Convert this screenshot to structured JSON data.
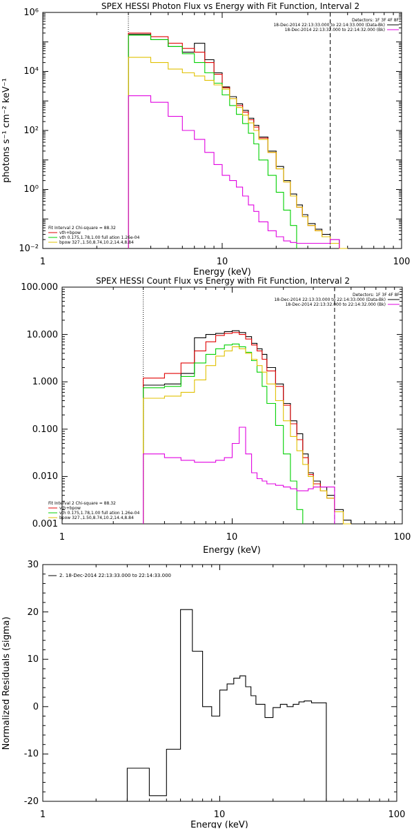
{
  "colors": {
    "data": "#000000",
    "total_fit": "#e00000",
    "vth": "#00d000",
    "bpow": "#e0c000",
    "background": "#e000e0"
  },
  "chart_data": [
    {
      "type": "line",
      "title": "SPEX HESSI Photon Flux vs Energy with Fit Function, Interval 2",
      "xlabel": "Energy (keV)",
      "ylabel": "photons s⁻¹ cm⁻² keV⁻¹",
      "xscale": "log",
      "yscale": "log",
      "xlim": [
        1,
        100
      ],
      "ylim": [
        0.01,
        1000000
      ],
      "xticks": [
        "1",
        "10",
        "100"
      ],
      "yticks": [
        "10⁻²",
        "10⁰",
        "10²",
        "10⁴",
        "10⁶"
      ],
      "vlines": [
        {
          "x": 3,
          "style": "dotted"
        },
        {
          "x": 40,
          "style": "dashed"
        }
      ],
      "header": {
        "detectors": "Detectors: 1F 3F 4F 8F",
        "line1": "18-Dec-2014 22:13:33.000 to 22:14:33.000 (Data-Bk)",
        "line2": "18-Dec-2014 22:13:32.000 to 22:14:32.000 (Bk)"
      },
      "fit_legend": {
        "title": "Fit Interval 2   Chi-square = 88.32",
        "items": [
          "vth+bpow",
          "vth 0.175,1.78,1.00  full ation 1.26e-04",
          "bpow 327.,1.50,8.74,10.2,14.4,8.84"
        ]
      },
      "edges": [
        3,
        4,
        5,
        6,
        7,
        8,
        9,
        10,
        11,
        12,
        13,
        14,
        15,
        16,
        18,
        20,
        22,
        24,
        26,
        28,
        30,
        33,
        36,
        40,
        45,
        50
      ],
      "series": [
        {
          "role": "data",
          "values": [
            180000,
            120000,
            70000,
            45000,
            90000,
            25000,
            9000,
            3000,
            1400,
            800,
            480,
            260,
            150,
            60,
            20,
            6,
            2,
            0.7,
            0.3,
            0.14,
            0.07,
            0.045,
            0.03,
            0.02,
            null
          ]
        },
        {
          "role": "total_fit",
          "values": [
            200000,
            150000,
            90000,
            60000,
            45000,
            20000,
            8000,
            2800,
            1200,
            700,
            420,
            230,
            130,
            55,
            18,
            5,
            1.8,
            0.6,
            0.25,
            0.12,
            0.06,
            0.04,
            0.025,
            0.015,
            0.01
          ]
        },
        {
          "role": "vth",
          "values": [
            170000,
            120000,
            70000,
            40000,
            20000,
            9000,
            4000,
            1600,
            700,
            350,
            170,
            80,
            35,
            10,
            3,
            0.8,
            0.2,
            0.06,
            null,
            null,
            null,
            null,
            null,
            null,
            null
          ]
        },
        {
          "role": "bpow",
          "values": [
            30000,
            20000,
            12000,
            9000,
            7000,
            5000,
            3500,
            2500,
            1200,
            600,
            330,
            180,
            100,
            50,
            18,
            5,
            1.8,
            0.6,
            0.25,
            0.12,
            0.06,
            0.04,
            0.025,
            0.015,
            0.01
          ]
        },
        {
          "role": "background",
          "values": [
            1500,
            900,
            300,
            100,
            50,
            18,
            7,
            3,
            2,
            1.2,
            0.6,
            0.3,
            0.18,
            0.08,
            0.04,
            0.025,
            0.018,
            0.016,
            0.015,
            0.015,
            0.015,
            0.015,
            0.015,
            0.02,
            null
          ]
        }
      ]
    },
    {
      "type": "line",
      "title": "SPEX HESSI Count Flux vs Energy with Fit Function, Interval 2",
      "xlabel": "Energy (keV)",
      "ylabel": "",
      "xscale": "log",
      "yscale": "log",
      "xlim": [
        1,
        100
      ],
      "ylim": [
        0.001,
        100
      ],
      "xticks": [
        "1",
        "10",
        "100"
      ],
      "yticks": [
        "0.001",
        "0.010",
        "0.100",
        "1.000",
        "10.000",
        "100.000"
      ],
      "vlines": [
        {
          "x": 3,
          "style": "dotted"
        },
        {
          "x": 40,
          "style": "dashed"
        }
      ],
      "header": {
        "detectors": "Detectors: 1F 3F 4F 8F",
        "line1": "18-Dec-2014 22:13:33.000 to 22:14:33.000 (Data-Bk)",
        "line2": "18-Dec-2014 22:13:32.000 to 22:14:32.000 (Bk)"
      },
      "fit_legend": {
        "title": "Fit Interval 2   Chi-square = 88.32",
        "items": [
          "vth+bpow",
          "vth 0.175,1.78,1.00  full ation 1.26e-04",
          "bpow 327.,1.50,8.74,10.2,14.4,8.84"
        ]
      },
      "edges": [
        3,
        4,
        5,
        6,
        7,
        8,
        9,
        10,
        11,
        12,
        13,
        14,
        15,
        16,
        18,
        20,
        22,
        24,
        26,
        28,
        30,
        33,
        36,
        40,
        45,
        50
      ],
      "series": [
        {
          "role": "data",
          "values": [
            0.85,
            0.9,
            1.5,
            8.5,
            10,
            10.5,
            11.5,
            12,
            11,
            9,
            6.5,
            5,
            3.8,
            2,
            0.9,
            0.35,
            0.15,
            0.08,
            0.03,
            0.012,
            0.008,
            0.006,
            0.004,
            0.002,
            0.0012
          ]
        },
        {
          "role": "total_fit",
          "values": [
            1.2,
            1.5,
            2.5,
            4.5,
            7,
            9.5,
            10.5,
            11,
            10,
            8,
            6,
            4.5,
            3,
            1.7,
            0.8,
            0.32,
            0.13,
            0.06,
            0.025,
            0.011,
            0.007,
            0.005,
            0.0035,
            0.0018,
            0.001
          ]
        },
        {
          "role": "vth",
          "values": [
            0.75,
            0.8,
            1.3,
            2.5,
            3.8,
            5,
            6,
            6.3,
            5.5,
            4.2,
            2.8,
            1.6,
            0.8,
            0.35,
            0.12,
            0.03,
            0.008,
            0.002,
            null,
            null,
            null,
            null,
            null,
            null,
            null
          ]
        },
        {
          "role": "bpow",
          "values": [
            0.45,
            0.5,
            0.6,
            1.1,
            2.2,
            3.5,
            4.5,
            5.5,
            5,
            4,
            3,
            2.2,
            1.6,
            0.9,
            0.4,
            0.15,
            0.07,
            0.035,
            0.018,
            0.01,
            0.006,
            0.005,
            0.0035,
            0.0018,
            0.001
          ]
        },
        {
          "role": "background",
          "values": [
            0.03,
            0.025,
            0.022,
            0.02,
            0.02,
            0.022,
            0.025,
            0.05,
            0.11,
            0.03,
            0.012,
            0.009,
            0.008,
            0.007,
            0.0065,
            0.006,
            0.0055,
            0.005,
            0.005,
            0.0055,
            0.006,
            0.006,
            0.006,
            null,
            null
          ]
        }
      ]
    },
    {
      "type": "line",
      "title": "",
      "xlabel": "Energy (keV)",
      "ylabel": "Normalized Residuals (sigma)",
      "xscale": "log",
      "yscale": "linear",
      "xlim": [
        1,
        100
      ],
      "ylim": [
        -20,
        30
      ],
      "xticks": [
        "1",
        "10",
        "100"
      ],
      "yticks": [
        "-20",
        "-10",
        "0",
        "10",
        "20",
        "30"
      ],
      "legend": "2. 18-Dec-2014 22:13:33.000 to 22:14:33.000",
      "edges": [
        3,
        4,
        5,
        6,
        7,
        8,
        9,
        10,
        11,
        12,
        13,
        14,
        15,
        16,
        18,
        20,
        22,
        24,
        26,
        28,
        30,
        33,
        36,
        40
      ],
      "series": [
        {
          "role": "data",
          "values": [
            -13,
            -18.8,
            -9,
            20.5,
            11.7,
            0,
            -2,
            3.5,
            4.8,
            6,
            6.5,
            4.2,
            2.3,
            0.5,
            -2.3,
            -0.2,
            0.5,
            0,
            0.5,
            1,
            1.2,
            0.8,
            0.8
          ]
        }
      ]
    }
  ]
}
